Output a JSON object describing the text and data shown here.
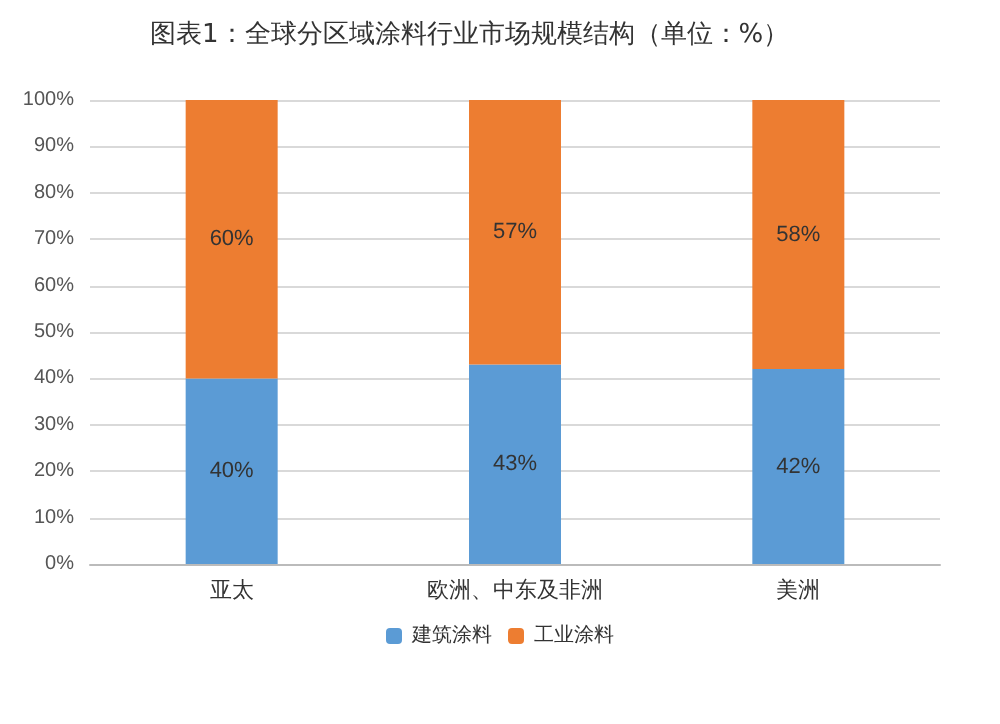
{
  "chart_data": {
    "type": "bar",
    "title": "图表1：全球分区域涂料行业市场规模结构（单位：%）",
    "categories": [
      "亚太",
      "欧洲、中东及非洲",
      "美洲"
    ],
    "stacked": true,
    "series": [
      {
        "name": "建筑涂料",
        "color": "#5b9bd5",
        "values": [
          40,
          43,
          42
        ],
        "value_labels": [
          "40%",
          "43%",
          "42%"
        ]
      },
      {
        "name": "工业涂料",
        "color": "#ed7d31",
        "values": [
          60,
          57,
          58
        ],
        "value_labels": [
          "60%",
          "57%",
          "58%"
        ]
      }
    ],
    "ylim": [
      0,
      100
    ],
    "yticks": [
      {
        "value": 0,
        "label": "0%"
      },
      {
        "value": 10,
        "label": "10%"
      },
      {
        "value": 20,
        "label": "20%"
      },
      {
        "value": 30,
        "label": "30%"
      },
      {
        "value": 40,
        "label": "40%"
      },
      {
        "value": 50,
        "label": "50%"
      },
      {
        "value": 60,
        "label": "60%"
      },
      {
        "value": 70,
        "label": "70%"
      },
      {
        "value": 80,
        "label": "80%"
      },
      {
        "value": 90,
        "label": "90%"
      },
      {
        "value": 100,
        "label": "100%"
      }
    ],
    "grid": "y",
    "legend": "bottom"
  }
}
